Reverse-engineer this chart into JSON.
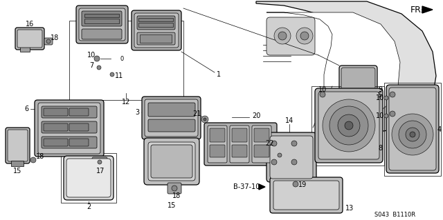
{
  "background_color": "#ffffff",
  "diagram_code": "S043 B1110R",
  "figsize": [
    6.4,
    3.19
  ],
  "dpi": 100
}
